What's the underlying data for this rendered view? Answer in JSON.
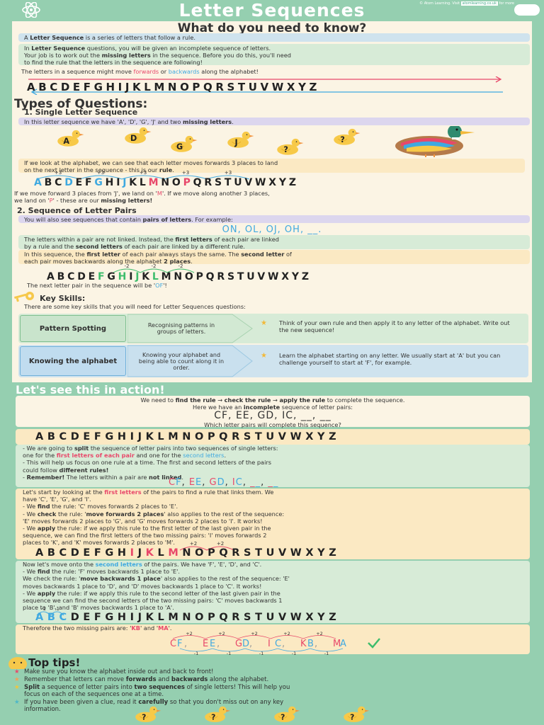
{
  "header": {
    "title": "Letter Sequences",
    "credit_prefix": "© Atom Learning. Visit",
    "credit_link": "atomlearning.co.uk",
    "credit_suffix": "for more",
    "colors": {
      "header_bg": "#95cfb0",
      "panel_bg": "#fbf4e4",
      "accent_red": "#e8486a",
      "accent_blue": "#3fa9e0",
      "accent_green": "#3ebd6c"
    }
  },
  "intro": {
    "heading": "What do you need to know?",
    "def_a": "A ",
    "def_b": "Letter Sequence",
    "def_c": " is a series of letters that follow a rule.",
    "p1_a": "In ",
    "p1_b": "Letter Sequence",
    "p1_c": " questions, you will be given an incomplete sequence of letters.",
    "p1_d": "Your job is to work out the ",
    "p1_e": "missing letters",
    "p1_f": " in the sequence. Before you do this, you'll need",
    "p1_g": "to find the rule that the letters in the sequence are following!",
    "move_a": "The letters in a sequence might move ",
    "move_fwd": "forwards",
    "move_or": " or ",
    "move_back": "backwards",
    "move_c": " along the alphabet!",
    "alphabet": "ABCDEFGHIJKLMNOPQRSTUVWXYZ"
  },
  "types": {
    "heading": "Types of Questions:",
    "q1_heading": "1. Single Letter Sequence",
    "q1_band_a": "In this letter sequence we have 'A', 'D', 'G', 'J' and two ",
    "q1_band_b": "missing letters",
    "q1_band_c": ".",
    "ducks": [
      "A",
      "D",
      "G",
      "J",
      "?",
      "?"
    ],
    "q1_text1_a": "If we look at the alphabet, we can see that each letter moves forwards 3 places to land",
    "q1_text1_b": "on the next letter in the sequence - this is our ",
    "q1_text1_c": "rule",
    "q1_text1_d": ".",
    "plus3": "+3",
    "q1_text2_a": "If we move forward 3 places from 'J', we land on '",
    "q1_text2_m": "M",
    "q1_text2_b": "'. If we move along another 3 places,",
    "q1_text2_c": "we land on '",
    "q1_text2_p": "P",
    "q1_text2_d": "' - these are our ",
    "q1_text2_e": "missing letters!",
    "q2_heading": "2. Sequence of Letter Pairs",
    "q2_band_a": "You will also see sequences that contain ",
    "q2_band_b": "pairs of letters",
    "q2_band_c": ". For example:",
    "q2_example": "ON, OL, OJ, OH, __.",
    "q2_green_a": "The letters within a pair are not linked. Instead, the ",
    "q2_green_b": "first letters",
    "q2_green_c": " of each pair are linked",
    "q2_green_d": "by a rule and the ",
    "q2_green_e": "second letters",
    "q2_green_f": " of each pair are linked by a different rule.",
    "q2_peach_a": "In this sequence, the ",
    "q2_peach_b": "first letter",
    "q2_peach_c": " of each pair always stays the same. The ",
    "q2_peach_d": "second letter",
    "q2_peach_e": " of",
    "q2_peach_f": "each pair moves backwards along the alphabet ",
    "q2_peach_g": "2 places",
    "q2_peach_h": ".",
    "minus2": "-2",
    "q2_next_a": "The next letter pair in the sequence will be '",
    "q2_next_b": "OF",
    "q2_next_c": "'!"
  },
  "skills": {
    "heading": "Key Skills:",
    "intro": "There are some key skills that you will need for Letter Sequences questions:",
    "items": [
      {
        "name": "Pattern Spotting",
        "desc": "Recognising patterns in groups of letters.",
        "tip": "Think of your own rule and then apply it to any letter of the alphabet. Write out the new sequence!"
      },
      {
        "name": "Knowing the alphabet",
        "desc": "Knowing your alphabet and being able to count along it in order.",
        "tip": "Learn the alphabet starting on any letter. We usually start at 'A' but you can challenge yourself to start at 'F', for example."
      }
    ]
  },
  "action": {
    "heading": "Let's see this in action!",
    "q_a": "We need to ",
    "q_b": "find the rule",
    "q_c": " → ",
    "q_d": "check the rule",
    "q_e": " → ",
    "q_f": "apply the rule",
    "q_g": " to complete the sequence.",
    "q_h": "Here we have an ",
    "q_i": "incomplete",
    "q_j": " sequence of letter pairs:",
    "sequence": "CF, EE, GD, IC, __, __",
    "q_k": "Which letter pairs will complete this sequence?",
    "split_1a": "- We are going to ",
    "split_1b": "split",
    "split_1c": " the sequence of letter pairs into two sequences of single letters:",
    "split_2a": "one for the ",
    "split_2b": "first letters of each pair",
    "split_2c": " and one for the ",
    "split_2d": "second letters",
    "split_2e": ".",
    "split_3": "- This will help us focus on one rule at a time. The first and second letters of the pairs",
    "split_4a": "could follow ",
    "split_4b": "different rules!",
    "split_5a": "- ",
    "split_5b": "Remember!",
    "split_5c": " The letters within a pair are ",
    "split_5d": "not linked",
    "split_5e": ".",
    "split_seq": "CF, EE, GD, IC, __, __",
    "first_1a": "Let's start by looking at the ",
    "first_1b": "first letters",
    "first_1c": " of the pairs to find a rule that links them. We",
    "first_2": "have 'C', 'E', 'G', and 'I'.",
    "first_3a": "- We ",
    "first_3b": "find",
    "first_3c": " the rule: 'C' moves forwards 2 places to 'E'.",
    "first_4a": "- We ",
    "first_4b": "check",
    "first_4c": " the rule: '",
    "first_4d": "move forwards 2 places",
    "first_4e": "' also applies to the rest of the sequence:",
    "first_5": "'E' moves forwards 2 places to 'G', and 'G' moves forwards 2 places to 'I'. It works!",
    "first_6a": "- We ",
    "first_6b": "apply",
    "first_6c": " the rule: if we apply this rule to the first letter of the last given pair in the",
    "first_7": "sequence, we can find the first letters of the two missing pairs: 'I' moves forwards 2",
    "first_8": "places to 'K', and 'K' moves forwards 2 places to 'M'.",
    "plus2": "+2",
    "second_1a": "Now let's move onto the ",
    "second_1b": "second letters",
    "second_1c": " of the pairs. We have 'F', 'E', 'D', and 'C'.",
    "second_2a": "- We ",
    "second_2b": "find",
    "second_2c": " the rule: 'F' moves backwards 1 place to 'E'.",
    "second_3a": "We check the rule: '",
    "second_3b": "move backwards 1 place",
    "second_3c": "' also applies to the rest of the sequence: 'E'",
    "second_4": "moves backwards 1 place to 'D', and 'D' moves backwards 1 place to 'C'. It works!",
    "second_5a": "- We ",
    "second_5b": "apply",
    "second_5c": " the rule: if we apply this rule to the second letter of the last given pair in the",
    "second_6": "sequence we can find the second letters of the two missing pairs: 'C' moves backwards 1",
    "second_7": "place to 'B', and 'B' moves backwards 1 place to 'A'.",
    "minus1": "-1",
    "answer_a": "Therefore the two missing pairs are: '",
    "answer_b": "KB",
    "answer_c": "' and '",
    "answer_d": "MA",
    "answer_e": "'.",
    "answer_seq": [
      "CF",
      "EE",
      "GD",
      "IC",
      "KB",
      "MA"
    ]
  },
  "tips": {
    "heading": "Top tips!",
    "t1": "Make sure you know the alphabet inside out and back to front!",
    "t2_a": "Remember that letters can move ",
    "t2_b": "forwards",
    "t2_c": " and ",
    "t2_d": "backwards",
    "t2_e": " along the alphabet.",
    "t3_a": "Split",
    "t3_b": " a sequence of letter pairs into ",
    "t3_c": "two sequences",
    "t3_d": " of single letters! This will help you",
    "t3_e": "focus on each of the sequences one at a time.",
    "t4_a": "If you have been given a clue, read it ",
    "t4_b": "carefully",
    "t4_c": " so that you don't miss out on any key",
    "t4_d": "information.",
    "ducks": [
      "?",
      "?",
      "?",
      "?"
    ]
  }
}
